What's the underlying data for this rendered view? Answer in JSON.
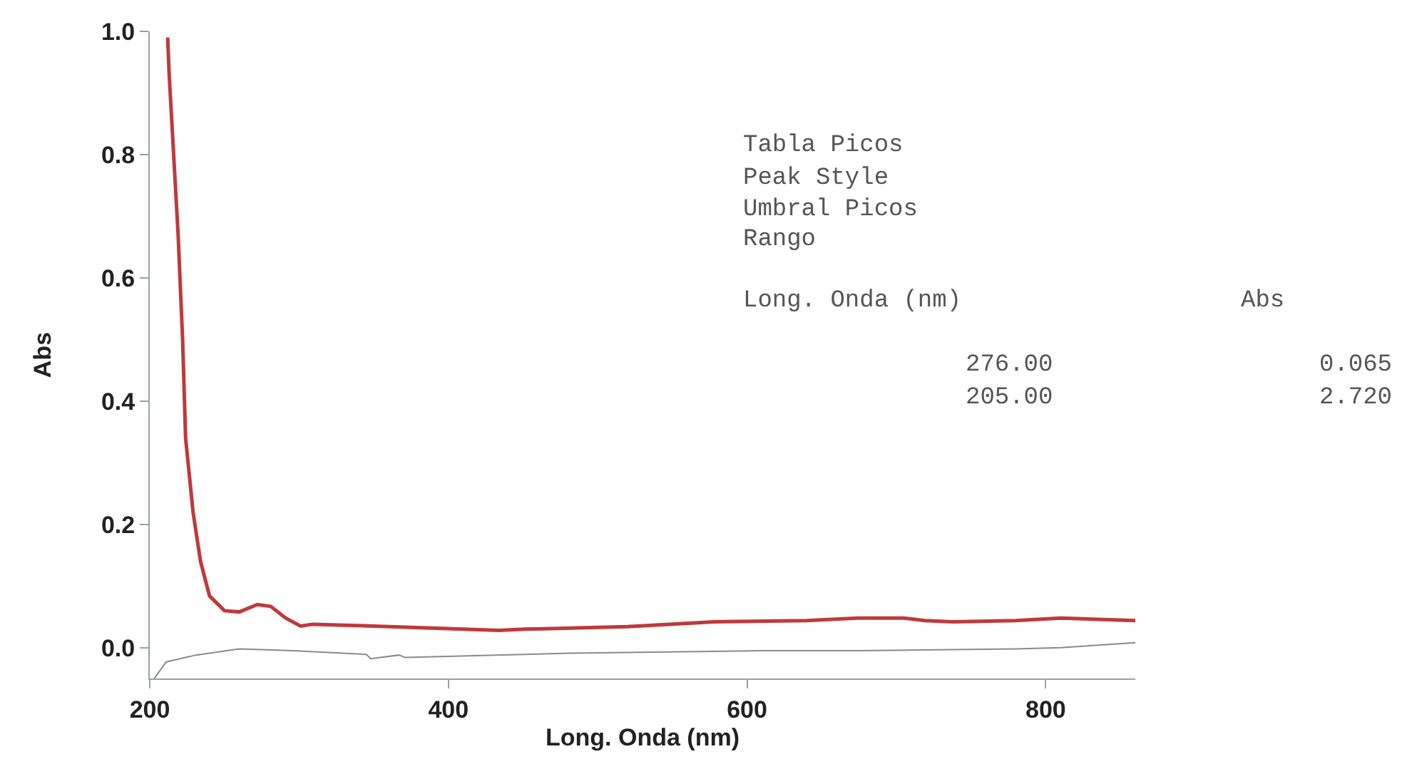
{
  "chart_data": {
    "type": "line",
    "xlabel": "Long. Onda (nm)",
    "ylabel": "Abs",
    "xlim": [
      200,
      860
    ],
    "ylim": [
      -0.05,
      1.0
    ],
    "xticks": [
      200,
      400,
      600,
      800
    ],
    "yticks": [
      {
        "value": 0,
        "label": "0.0"
      },
      {
        "value": 0.2,
        "label": "0.2"
      },
      {
        "value": 0.4,
        "label": "0.4"
      },
      {
        "value": 0.6,
        "label": "0.6"
      },
      {
        "value": 0.8,
        "label": "0.8"
      },
      {
        "value": 1.0,
        "label": "1.0"
      }
    ],
    "marker": "none",
    "line_style": "solid",
    "series": [
      {
        "color": "#c0393b",
        "x": [
          212,
          213,
          216,
          219,
          222,
          224,
          229,
          234,
          240,
          250,
          260,
          272,
          281,
          291,
          301,
          309,
          350,
          434,
          451,
          520,
          578,
          640,
          674,
          705,
          719,
          738,
          780,
          810,
          860
        ],
        "values": [
          0.99,
          0.93,
          0.8,
          0.67,
          0.5,
          0.34,
          0.22,
          0.14,
          0.084,
          0.06,
          0.058,
          0.07,
          0.067,
          0.048,
          0.035,
          0.038,
          0.035,
          0.028,
          0.03,
          0.034,
          0.042,
          0.044,
          0.048,
          0.048,
          0.044,
          0.042,
          0.044,
          0.048,
          0.044
        ]
      },
      {
        "color": "#8a8a8a",
        "x": [
          203,
          211,
          231,
          260,
          296,
          345,
          348,
          367,
          371,
          482,
          610,
          674,
          780,
          810,
          860
        ],
        "values": [
          -0.05,
          -0.023,
          -0.012,
          -0.002,
          -0.005,
          -0.011,
          -0.018,
          -0.012,
          -0.016,
          -0.009,
          -0.005,
          -0.005,
          -0.002,
          0.0,
          0.008
        ]
      }
    ],
    "annotations": [
      "Tabla Picos",
      "Peak Style",
      "Umbral Picos",
      "Rango",
      "Long. Onda (nm)",
      "Abs",
      "276.00",
      "0.065",
      "205.00",
      "2.720"
    ]
  }
}
